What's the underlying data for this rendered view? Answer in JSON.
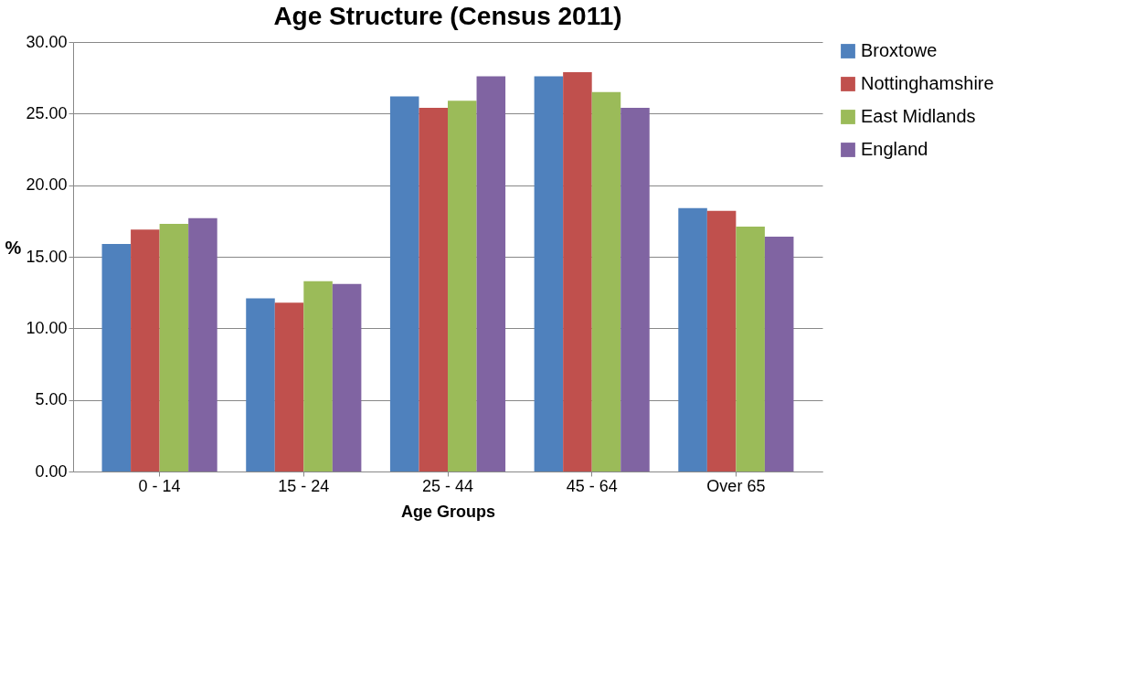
{
  "chart_data": {
    "type": "bar",
    "title": "Age Structure (Census 2011)",
    "xlabel": "Age Groups",
    "ylabel": "%",
    "categories": [
      "0 - 14",
      "15 - 24",
      "25 - 44",
      "45 - 64",
      "Over 65"
    ],
    "series": [
      {
        "name": "Broxtowe",
        "color": "#4f81bd",
        "values": [
          15.9,
          12.1,
          26.2,
          27.6,
          18.4
        ]
      },
      {
        "name": "Nottinghamshire",
        "color": "#c0504d",
        "values": [
          16.9,
          11.8,
          25.4,
          27.9,
          18.2
        ]
      },
      {
        "name": "East Midlands",
        "color": "#9bbb59",
        "values": [
          17.3,
          13.3,
          25.9,
          26.5,
          17.1
        ]
      },
      {
        "name": "England",
        "color": "#8064a2",
        "values": [
          17.7,
          13.1,
          27.6,
          25.4,
          16.4
        ]
      }
    ],
    "ylim": [
      0,
      30
    ],
    "yticks": [
      {
        "value": 0,
        "label": "0.00"
      },
      {
        "value": 5,
        "label": "5.00"
      },
      {
        "value": 10,
        "label": "10.00"
      },
      {
        "value": 15,
        "label": "15.00"
      },
      {
        "value": 20,
        "label": "20.00"
      },
      {
        "value": 25,
        "label": "25.00"
      },
      {
        "value": 30,
        "label": "30.00"
      }
    ],
    "grid": "y",
    "legend": "right"
  }
}
